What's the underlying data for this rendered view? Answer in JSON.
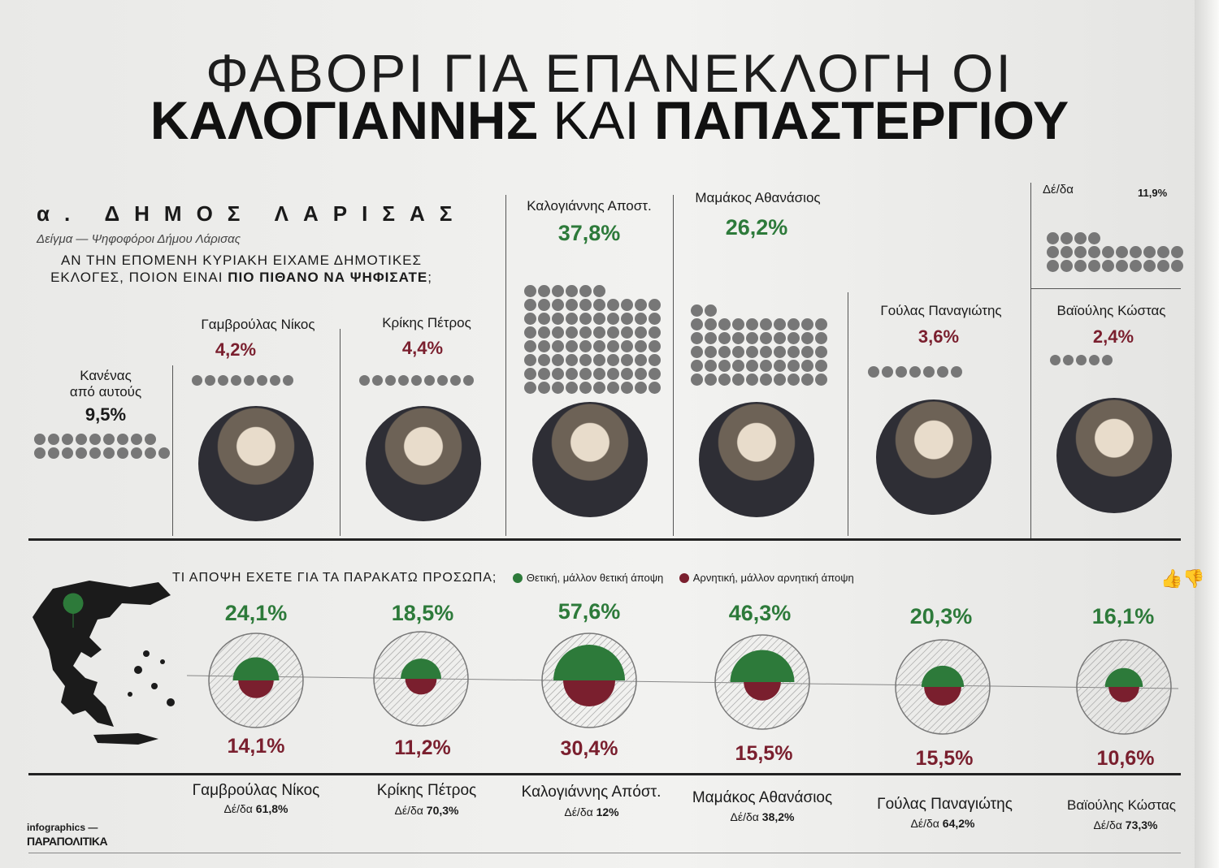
{
  "headline": {
    "line1": "ΦΑΒΟΡΙ ΓΙΑ ΕΠΑΝΕΚΛΟΓΗ ΟΙ",
    "name1": "ΚΑΛΟΓΙΑΝΝΗΣ",
    "connector": "ΚΑΙ",
    "name2": "ΠΑΠΑΣΤΕΡΓΙΟΥ"
  },
  "section": {
    "title": "α. ΔΗΜΟΣ ΛΑΡΙΣΑΣ",
    "sample": "Δείγμα — Ψηφοφόροι Δήμου Λάρισας",
    "question_part1": "ΑΝ ΤΗΝ ΕΠΟΜΕΝΗ ΚΥΡΙΑΚΗ ΕΙΧΑΜΕ ΔΗΜΟΤΙΚΕΣ ΕΚΛΟΓΕΣ, ΠΟΙΟΝ ΕΙΝΑΙ",
    "question_bold": "ΠΙΟ ΠΙΘΑΝΟ ΝΑ ΨΗΦΙΣΑΤΕ",
    "question_end": ";"
  },
  "vote_intention": {
    "none_label_line1": "Κανένας",
    "none_label_line2": "από αυτούς",
    "none_value": "9,5%",
    "dk_label": "Δέ/δα",
    "dk_value": "11,9%",
    "candidates": [
      {
        "name": "Γαμβρούλας Νίκος",
        "value": "4,2%"
      },
      {
        "name": "Κρίκης Πέτρος",
        "value": "4,4%"
      },
      {
        "name": "Καλογιάννης Αποστ.",
        "value": "37,8%"
      },
      {
        "name": "Μαμάκος Αθανάσιος",
        "value": "26,2%"
      },
      {
        "name": "Γούλας Παναγιώτης",
        "value": "3,6%"
      },
      {
        "name": "Βαϊούλης Κώστας",
        "value": "2,4%"
      }
    ]
  },
  "opinion": {
    "question": "ΤΙ ΑΠΟΨΗ ΕΧΕΤΕ ΓΙΑ ΤΑ ΠΑΡΑΚΑΤΩ ΠΡΟΣΩΠΑ;",
    "legend_positive": "Θετική, μάλλον θετική άποψη",
    "legend_negative": "Αρνητική, μάλλον αρνητική άποψη",
    "dk_prefix": "Δέ/δα",
    "people": [
      {
        "name": "Γαμβρούλας Νίκος",
        "positive": "24,1%",
        "negative": "14,1%",
        "dk": "61,8%"
      },
      {
        "name": "Κρίκης Πέτρος",
        "positive": "18,5%",
        "negative": "11,2%",
        "dk": "70,3%"
      },
      {
        "name": "Καλογιάννης Απόστ.",
        "positive": "57,6%",
        "negative": "30,4%",
        "dk": "12%"
      },
      {
        "name": "Μαμάκος Αθανάσιος",
        "positive": "46,3%",
        "negative": "15,5%",
        "dk": "38,2%"
      },
      {
        "name": "Γούλας Παναγιώτης",
        "positive": "20,3%",
        "negative": "15,5%",
        "dk": "64,2%"
      },
      {
        "name": "Βαϊούλης Κώστας",
        "positive": "16,1%",
        "negative": "10,6%",
        "dk": "73,3%"
      }
    ]
  },
  "credit": {
    "line1": "infographics —",
    "line2": "ΠΑΡΑΠΟΛΙΤΙΚΑ"
  },
  "colors": {
    "positive": "#2d7a3a",
    "negative": "#7a1f2e",
    "dots": "#777777"
  },
  "chart_data": [
    {
      "type": "bar",
      "categories": [
        "Κανένας από αυτούς",
        "Γαμβρούλας Νίκος",
        "Κρίκης Πέτρος",
        "Καλογιάννης Αποστ.",
        "Μαμάκος Αθανάσιος",
        "Γούλας Παναγιώτης",
        "Βαϊούλης Κώστας",
        "Δέ/δα"
      ],
      "values": [
        9.5,
        4.2,
        4.4,
        37.8,
        26.2,
        3.6,
        2.4,
        11.9
      ]
    },
    {
      "type": "bar",
      "categories": [
        "Γαμβρούλας Νίκος",
        "Κρίκης Πέτρος",
        "Καλογιάννης Απόστ.",
        "Μαμάκος Αθανάσιος",
        "Γούλας Παναγιώτης",
        "Βαϊούλης Κώστας"
      ],
      "series": [
        {
          "name": "Θετική, μάλλον θετική άποψη",
          "values": [
            24.1,
            18.5,
            57.6,
            46.3,
            20.3,
            16.1
          ]
        },
        {
          "name": "Αρνητική, μάλλον αρνητική άποψη",
          "values": [
            14.1,
            11.2,
            30.4,
            15.5,
            15.5,
            10.6
          ]
        },
        {
          "name": "Δέ/δα",
          "values": [
            61.8,
            70.3,
            12,
            38.2,
            64.2,
            73.3
          ]
        }
      ]
    }
  ]
}
